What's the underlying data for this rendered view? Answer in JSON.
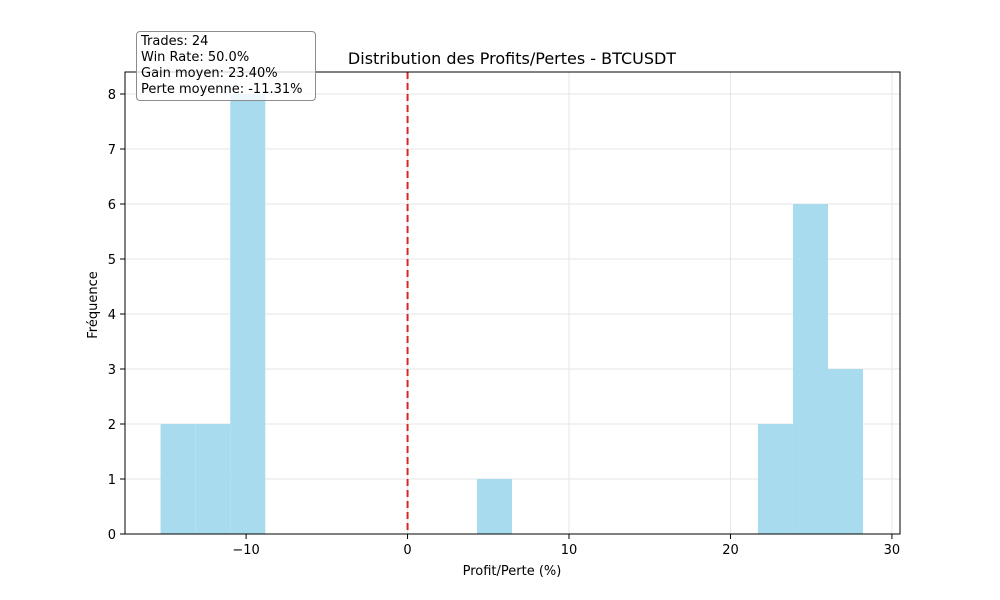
{
  "chart_data": {
    "type": "bar",
    "title": "Distribution des Profits/Pertes - BTCUSDT",
    "xlabel": "Profit/Perte (%)",
    "ylabel": "Fréquence",
    "xlim": [
      -17.5,
      30.5
    ],
    "ylim": [
      0,
      8.4
    ],
    "xticks": [
      -10,
      0,
      10,
      20,
      30
    ],
    "yticks": [
      0,
      1,
      2,
      3,
      4,
      5,
      6,
      7,
      8
    ],
    "grid": true,
    "bar_color": "#a9dbee",
    "reference_line": {
      "x": 0,
      "color": "#d62728",
      "style": "dashed"
    },
    "bins": [
      {
        "x0": -15.3,
        "x1": -13.15,
        "count": 2
      },
      {
        "x0": -13.15,
        "x1": -10.98,
        "count": 2
      },
      {
        "x0": -10.98,
        "x1": -8.81,
        "count": 8
      },
      {
        "x0": 4.3,
        "x1": 6.47,
        "count": 1
      },
      {
        "x0": 21.7,
        "x1": 23.87,
        "count": 2
      },
      {
        "x0": 23.87,
        "x1": 26.04,
        "count": 6
      },
      {
        "x0": 26.04,
        "x1": 28.21,
        "count": 3
      }
    ]
  },
  "stats": {
    "trades": "Trades: 24",
    "win_rate": "Win Rate: 50.0%",
    "avg_gain": "Gain moyen: 23.40%",
    "avg_loss": "Perte moyenne: -11.31%"
  }
}
